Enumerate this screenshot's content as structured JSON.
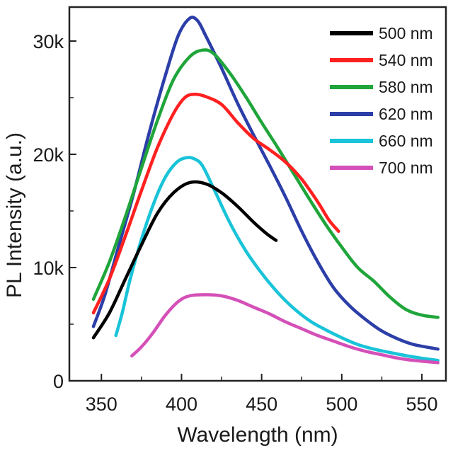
{
  "chart_data": {
    "type": "line",
    "title": "",
    "xlabel": "Wavelength (nm)",
    "ylabel": "PL Intensity (a.u.)",
    "xlim": [
      330,
      565
    ],
    "ylim": [
      0,
      33000
    ],
    "xticks": [
      350,
      400,
      450,
      500,
      550
    ],
    "xtick_labels": [
      "350",
      "400",
      "450",
      "500",
      "550"
    ],
    "yticks": [
      0,
      10000,
      20000,
      30000
    ],
    "ytick_labels": [
      "0",
      "10k",
      "20k",
      "30k"
    ],
    "grid": false,
    "legend_position": "top-right",
    "series": [
      {
        "name": "500 nm",
        "color": "#000000",
        "points": [
          [
            345,
            3800
          ],
          [
            355,
            6000
          ],
          [
            365,
            9000
          ],
          [
            375,
            12000
          ],
          [
            385,
            14800
          ],
          [
            395,
            16600
          ],
          [
            405,
            17500
          ],
          [
            415,
            17400
          ],
          [
            425,
            16600
          ],
          [
            435,
            15400
          ],
          [
            445,
            14000
          ],
          [
            453,
            13000
          ],
          [
            459,
            12400
          ]
        ]
      },
      {
        "name": "540 nm",
        "color": "#ff2020",
        "points": [
          [
            345,
            6000
          ],
          [
            355,
            9000
          ],
          [
            365,
            12800
          ],
          [
            375,
            16800
          ],
          [
            385,
            20600
          ],
          [
            395,
            23600
          ],
          [
            402,
            25000
          ],
          [
            408,
            25300
          ],
          [
            415,
            25100
          ],
          [
            425,
            24400
          ],
          [
            435,
            22800
          ],
          [
            445,
            21400
          ],
          [
            455,
            20400
          ],
          [
            465,
            19300
          ],
          [
            475,
            17800
          ],
          [
            485,
            15800
          ],
          [
            492,
            14200
          ],
          [
            498,
            13200
          ]
        ]
      },
      {
        "name": "580 nm",
        "color": "#1fa53a",
        "points": [
          [
            345,
            7200
          ],
          [
            355,
            10500
          ],
          [
            365,
            14500
          ],
          [
            375,
            18800
          ],
          [
            385,
            23000
          ],
          [
            395,
            26600
          ],
          [
            405,
            28600
          ],
          [
            413,
            29200
          ],
          [
            420,
            28900
          ],
          [
            430,
            27200
          ],
          [
            440,
            25100
          ],
          [
            450,
            22800
          ],
          [
            460,
            20600
          ],
          [
            470,
            18300
          ],
          [
            480,
            16000
          ],
          [
            490,
            13800
          ],
          [
            500,
            11800
          ],
          [
            510,
            10000
          ],
          [
            520,
            8800
          ],
          [
            530,
            7400
          ],
          [
            540,
            6300
          ],
          [
            550,
            5800
          ],
          [
            560,
            5600
          ]
        ]
      },
      {
        "name": "620 nm",
        "color": "#2c3ea8",
        "points": [
          [
            345,
            4800
          ],
          [
            352,
            7500
          ],
          [
            360,
            11500
          ],
          [
            370,
            16500
          ],
          [
            380,
            22000
          ],
          [
            390,
            27000
          ],
          [
            398,
            30500
          ],
          [
            405,
            32000
          ],
          [
            410,
            31800
          ],
          [
            415,
            30500
          ],
          [
            425,
            27600
          ],
          [
            435,
            24500
          ],
          [
            445,
            21700
          ],
          [
            455,
            19000
          ],
          [
            465,
            16200
          ],
          [
            475,
            13200
          ],
          [
            485,
            10500
          ],
          [
            495,
            8200
          ],
          [
            505,
            6600
          ],
          [
            515,
            5400
          ],
          [
            525,
            4400
          ],
          [
            535,
            3700
          ],
          [
            545,
            3200
          ],
          [
            560,
            2800
          ]
        ]
      },
      {
        "name": "660 nm",
        "color": "#19c3d8",
        "points": [
          [
            359,
            4000
          ],
          [
            363,
            6000
          ],
          [
            368,
            9000
          ],
          [
            375,
            12500
          ],
          [
            383,
            15800
          ],
          [
            390,
            18000
          ],
          [
            397,
            19300
          ],
          [
            403,
            19700
          ],
          [
            408,
            19600
          ],
          [
            413,
            19000
          ],
          [
            420,
            17000
          ],
          [
            430,
            14000
          ],
          [
            440,
            11500
          ],
          [
            450,
            9500
          ],
          [
            460,
            7800
          ],
          [
            470,
            6400
          ],
          [
            480,
            5300
          ],
          [
            490,
            4500
          ],
          [
            500,
            3800
          ],
          [
            510,
            3200
          ],
          [
            520,
            2800
          ],
          [
            530,
            2500
          ],
          [
            545,
            2100
          ],
          [
            560,
            1800
          ]
        ]
      },
      {
        "name": "700 nm",
        "color": "#d450b8",
        "points": [
          [
            369,
            2200
          ],
          [
            375,
            3000
          ],
          [
            382,
            4200
          ],
          [
            390,
            5800
          ],
          [
            398,
            7000
          ],
          [
            405,
            7500
          ],
          [
            415,
            7600
          ],
          [
            425,
            7500
          ],
          [
            435,
            7100
          ],
          [
            445,
            6500
          ],
          [
            455,
            5900
          ],
          [
            465,
            5200
          ],
          [
            475,
            4600
          ],
          [
            485,
            4000
          ],
          [
            495,
            3500
          ],
          [
            505,
            3000
          ],
          [
            515,
            2600
          ],
          [
            525,
            2300
          ],
          [
            535,
            2000
          ],
          [
            545,
            1800
          ],
          [
            560,
            1600
          ]
        ]
      }
    ]
  }
}
